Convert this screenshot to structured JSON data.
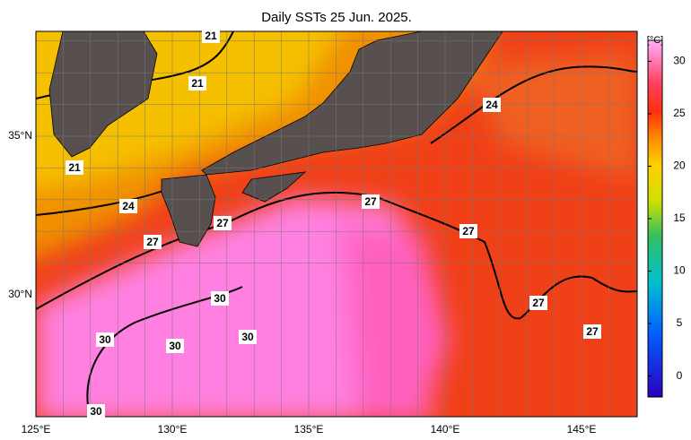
{
  "title": "Daily SSTs 25 Jun. 2025.",
  "lon_labels": [
    "125°E",
    "130°E",
    "135°E",
    "140°E",
    "145°E"
  ],
  "lat_labels": [
    "35°N",
    "30°N"
  ],
  "colorbar": {
    "unit": "[°C]",
    "ticks": [
      0,
      5,
      10,
      15,
      20,
      25,
      30
    ],
    "range": [
      -2,
      32
    ]
  },
  "contour_labels": [
    21,
    21,
    21,
    24,
    24,
    27,
    27,
    27,
    27,
    27,
    27,
    30,
    30,
    30,
    30,
    30
  ]
}
